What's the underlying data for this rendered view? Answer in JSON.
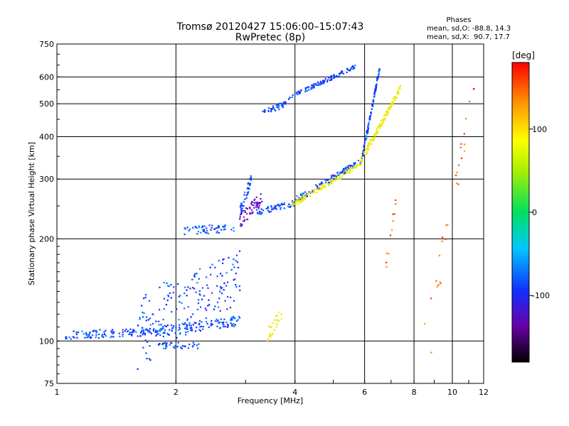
{
  "chart_data": {
    "type": "scatter",
    "title": "Tromsø 20120427 15:06:00–15:07:43",
    "subtitle": "RwPretec (8p)",
    "xlabel": "Frequency [MHz]",
    "ylabel": "Stationary phase Virtual Height [km]",
    "x_scale": "log",
    "y_scale": "log",
    "xlim": [
      1,
      12
    ],
    "ylim": [
      75,
      750
    ],
    "x_ticks": [
      1,
      2,
      4,
      6,
      8,
      10,
      12
    ],
    "y_ticks": [
      75,
      100,
      200,
      300,
      400,
      500,
      600,
      750
    ],
    "grid": true,
    "stats": {
      "title": "Phases",
      "line1": "mean, sd,O: -88.8, 14.3",
      "line2": "mean, sd,X:  90.7, 17.7"
    },
    "colorbar": {
      "label": "[deg]",
      "ticks": [
        100,
        0,
        -100
      ],
      "range": [
        -180,
        180
      ]
    },
    "series": [
      {
        "color_hint": "blue",
        "segments": [
          {
            "x0": 1.05,
            "x1": 1.85,
            "y0": 104,
            "y1": 107,
            "spread": 3,
            "n": 130
          },
          {
            "x0": 1.85,
            "x1": 2.9,
            "y0": 107,
            "y1": 115,
            "spread": 4,
            "n": 110
          },
          {
            "x0": 1.6,
            "x1": 2.95,
            "y0": 110,
            "y1": 160,
            "spread": 28,
            "n": 170
          },
          {
            "x0": 1.8,
            "x1": 2.3,
            "y0": 97,
            "y1": 97,
            "spread": 2,
            "n": 40
          },
          {
            "x0": 2.1,
            "x1": 2.8,
            "y0": 212,
            "y1": 215,
            "spread": 6,
            "n": 55
          },
          {
            "x0": 2.9,
            "x1": 3.1,
            "y0": 240,
            "y1": 300,
            "spread": 10,
            "n": 45
          },
          {
            "x0": 3.2,
            "x1": 4.0,
            "y0": 240,
            "y1": 255,
            "spread": 5,
            "n": 60
          },
          {
            "x0": 4.0,
            "x1": 5.9,
            "y0": 260,
            "y1": 340,
            "spread": 6,
            "n": 120
          },
          {
            "x0": 5.9,
            "x1": 6.55,
            "y0": 340,
            "y1": 640,
            "spread": 8,
            "n": 110
          },
          {
            "x0": 3.3,
            "x1": 3.8,
            "y0": 470,
            "y1": 500,
            "spread": 10,
            "n": 40
          },
          {
            "x0": 3.85,
            "x1": 5.7,
            "y0": 520,
            "y1": 645,
            "spread": 8,
            "n": 110
          }
        ]
      },
      {
        "color_hint": "purple",
        "segments": [
          {
            "x0": 2.9,
            "x1": 3.3,
            "y0": 225,
            "y1": 265,
            "spread": 12,
            "n": 60
          }
        ]
      },
      {
        "color_hint": "yellow",
        "segments": [
          {
            "x0": 3.9,
            "x1": 5.8,
            "y0": 250,
            "y1": 330,
            "spread": 5,
            "n": 110
          },
          {
            "x0": 5.8,
            "x1": 7.4,
            "y0": 330,
            "y1": 560,
            "spread": 10,
            "n": 120
          },
          {
            "x0": 3.4,
            "x1": 3.7,
            "y0": 104,
            "y1": 120,
            "spread": 5,
            "n": 25
          }
        ]
      },
      {
        "color_hint": "orange",
        "segments": [
          {
            "x0": 6.8,
            "x1": 7.2,
            "y0": 170,
            "y1": 260,
            "spread": 8,
            "n": 12
          },
          {
            "x0": 8.5,
            "x1": 11.5,
            "y0": 100,
            "y1": 600,
            "spread": 40,
            "n": 30
          }
        ]
      }
    ]
  }
}
